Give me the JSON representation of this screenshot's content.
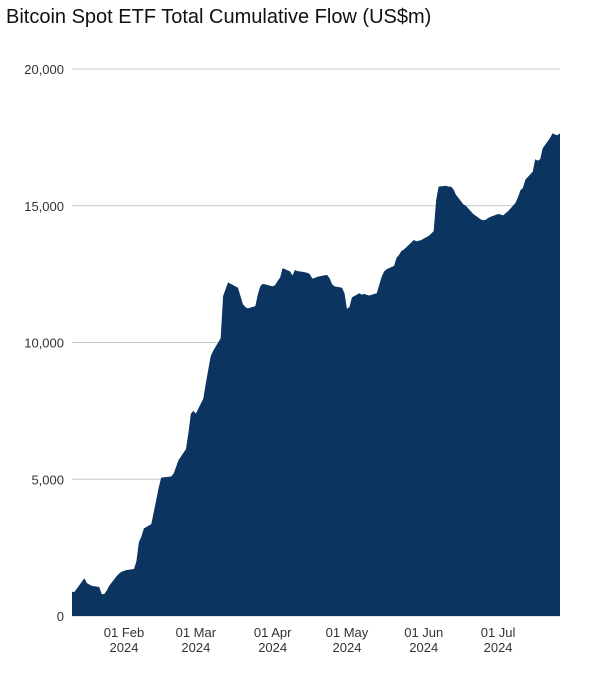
{
  "chart_data": {
    "type": "area",
    "title": "Bitcoin Spot ETF Total Cumulative Flow (US$m)",
    "color": "#0b3560",
    "grid": true,
    "ylim": [
      0,
      20000
    ],
    "yticks": [
      0,
      {
        "value": 5000,
        "label": "5,000"
      },
      {
        "value": 10000,
        "label": "10,000"
      },
      {
        "value": 15000,
        "label": "15,000"
      },
      {
        "value": 20000,
        "label": "20,000"
      }
    ],
    "xlim": [
      "2024-01-11",
      "2024-07-26"
    ],
    "xticks": [
      {
        "value": "2024-02-01",
        "label": "01 Feb 2024"
      },
      {
        "value": "2024-03-01",
        "label": "01 Mar 2024"
      },
      {
        "value": "2024-04-01",
        "label": "01 Apr 2024"
      },
      {
        "value": "2024-05-01",
        "label": "01 May 2024"
      },
      {
        "value": "2024-06-01",
        "label": "01 Jun 2024"
      },
      {
        "value": "2024-07-01",
        "label": "01 Jul 2024"
      }
    ],
    "x": [
      "2024-01-11",
      "2024-01-12",
      "2024-01-16",
      "2024-01-17",
      "2024-01-18",
      "2024-01-19",
      "2024-01-22",
      "2024-01-23",
      "2024-01-24",
      "2024-01-25",
      "2024-01-26",
      "2024-01-29",
      "2024-01-30",
      "2024-01-31",
      "2024-02-01",
      "2024-02-02",
      "2024-02-05",
      "2024-02-06",
      "2024-02-07",
      "2024-02-08",
      "2024-02-09",
      "2024-02-12",
      "2024-02-13",
      "2024-02-14",
      "2024-02-15",
      "2024-02-16",
      "2024-02-20",
      "2024-02-21",
      "2024-02-22",
      "2024-02-23",
      "2024-02-26",
      "2024-02-27",
      "2024-02-28",
      "2024-02-29",
      "2024-03-01",
      "2024-03-04",
      "2024-03-05",
      "2024-03-06",
      "2024-03-07",
      "2024-03-08",
      "2024-03-11",
      "2024-03-12",
      "2024-03-13",
      "2024-03-14",
      "2024-03-15",
      "2024-03-18",
      "2024-03-19",
      "2024-03-20",
      "2024-03-21",
      "2024-03-22",
      "2024-03-25",
      "2024-03-26",
      "2024-03-27",
      "2024-03-28",
      "2024-04-01",
      "2024-04-02",
      "2024-04-03",
      "2024-04-04",
      "2024-04-05",
      "2024-04-08",
      "2024-04-09",
      "2024-04-10",
      "2024-04-11",
      "2024-04-12",
      "2024-04-15",
      "2024-04-16",
      "2024-04-17",
      "2024-04-18",
      "2024-04-19",
      "2024-04-22",
      "2024-04-23",
      "2024-04-24",
      "2024-04-25",
      "2024-04-26",
      "2024-04-29",
      "2024-04-30",
      "2024-05-01",
      "2024-05-02",
      "2024-05-03",
      "2024-05-06",
      "2024-05-07",
      "2024-05-08",
      "2024-05-09",
      "2024-05-10",
      "2024-05-13",
      "2024-05-14",
      "2024-05-15",
      "2024-05-16",
      "2024-05-17",
      "2024-05-20",
      "2024-05-21",
      "2024-05-22",
      "2024-05-23",
      "2024-05-24",
      "2024-05-28",
      "2024-05-29",
      "2024-05-30",
      "2024-05-31",
      "2024-06-03",
      "2024-06-04",
      "2024-06-05",
      "2024-06-06",
      "2024-06-07",
      "2024-06-10",
      "2024-06-11",
      "2024-06-12",
      "2024-06-13",
      "2024-06-14",
      "2024-06-17",
      "2024-06-18",
      "2024-06-20",
      "2024-06-21",
      "2024-06-24",
      "2024-06-25",
      "2024-06-26",
      "2024-06-27",
      "2024-06-28",
      "2024-07-01",
      "2024-07-02",
      "2024-07-03",
      "2024-07-05",
      "2024-07-08",
      "2024-07-09",
      "2024-07-10",
      "2024-07-11",
      "2024-07-12",
      "2024-07-15",
      "2024-07-16",
      "2024-07-17",
      "2024-07-18",
      "2024-07-19",
      "2024-07-22",
      "2024-07-23",
      "2024-07-24",
      "2024-07-25",
      "2024-07-26"
    ],
    "values": [
      880,
      880,
      1380,
      1200,
      1150,
      1100,
      1060,
      800,
      800,
      930,
      1100,
      1460,
      1550,
      1620,
      1650,
      1680,
      1720,
      2000,
      2700,
      2900,
      3200,
      3360,
      3800,
      4240,
      4700,
      5060,
      5100,
      5200,
      5450,
      5700,
      6100,
      6700,
      7400,
      7500,
      7400,
      7950,
      8500,
      9000,
      9500,
      9700,
      10150,
      11700,
      11950,
      12200,
      12150,
      12000,
      11700,
      11400,
      11300,
      11250,
      11330,
      11750,
      12050,
      12150,
      12050,
      12100,
      12250,
      12370,
      12720,
      12600,
      12450,
      12650,
      12610,
      12600,
      12550,
      12500,
      12340,
      12360,
      12400,
      12460,
      12470,
      12350,
      12130,
      12050,
      12000,
      11800,
      11230,
      11300,
      11650,
      11800,
      11750,
      11780,
      11740,
      11720,
      11800,
      12100,
      12400,
      12600,
      12680,
      12800,
      13100,
      13200,
      13350,
      13400,
      13750,
      13700,
      13720,
      13750,
      13900,
      13980,
      14070,
      15200,
      15700,
      15730,
      15700,
      15700,
      15600,
      15400,
      15050,
      15000,
      14800,
      14700,
      14500,
      14470,
      14490,
      14550,
      14600,
      14700,
      14680,
      14650,
      14800,
      15100,
      15300,
      15560,
      15650,
      15950,
      16250,
      16700,
      16650,
      16700,
      17100,
      17480,
      17650,
      17600,
      17580,
      17650
    ]
  }
}
